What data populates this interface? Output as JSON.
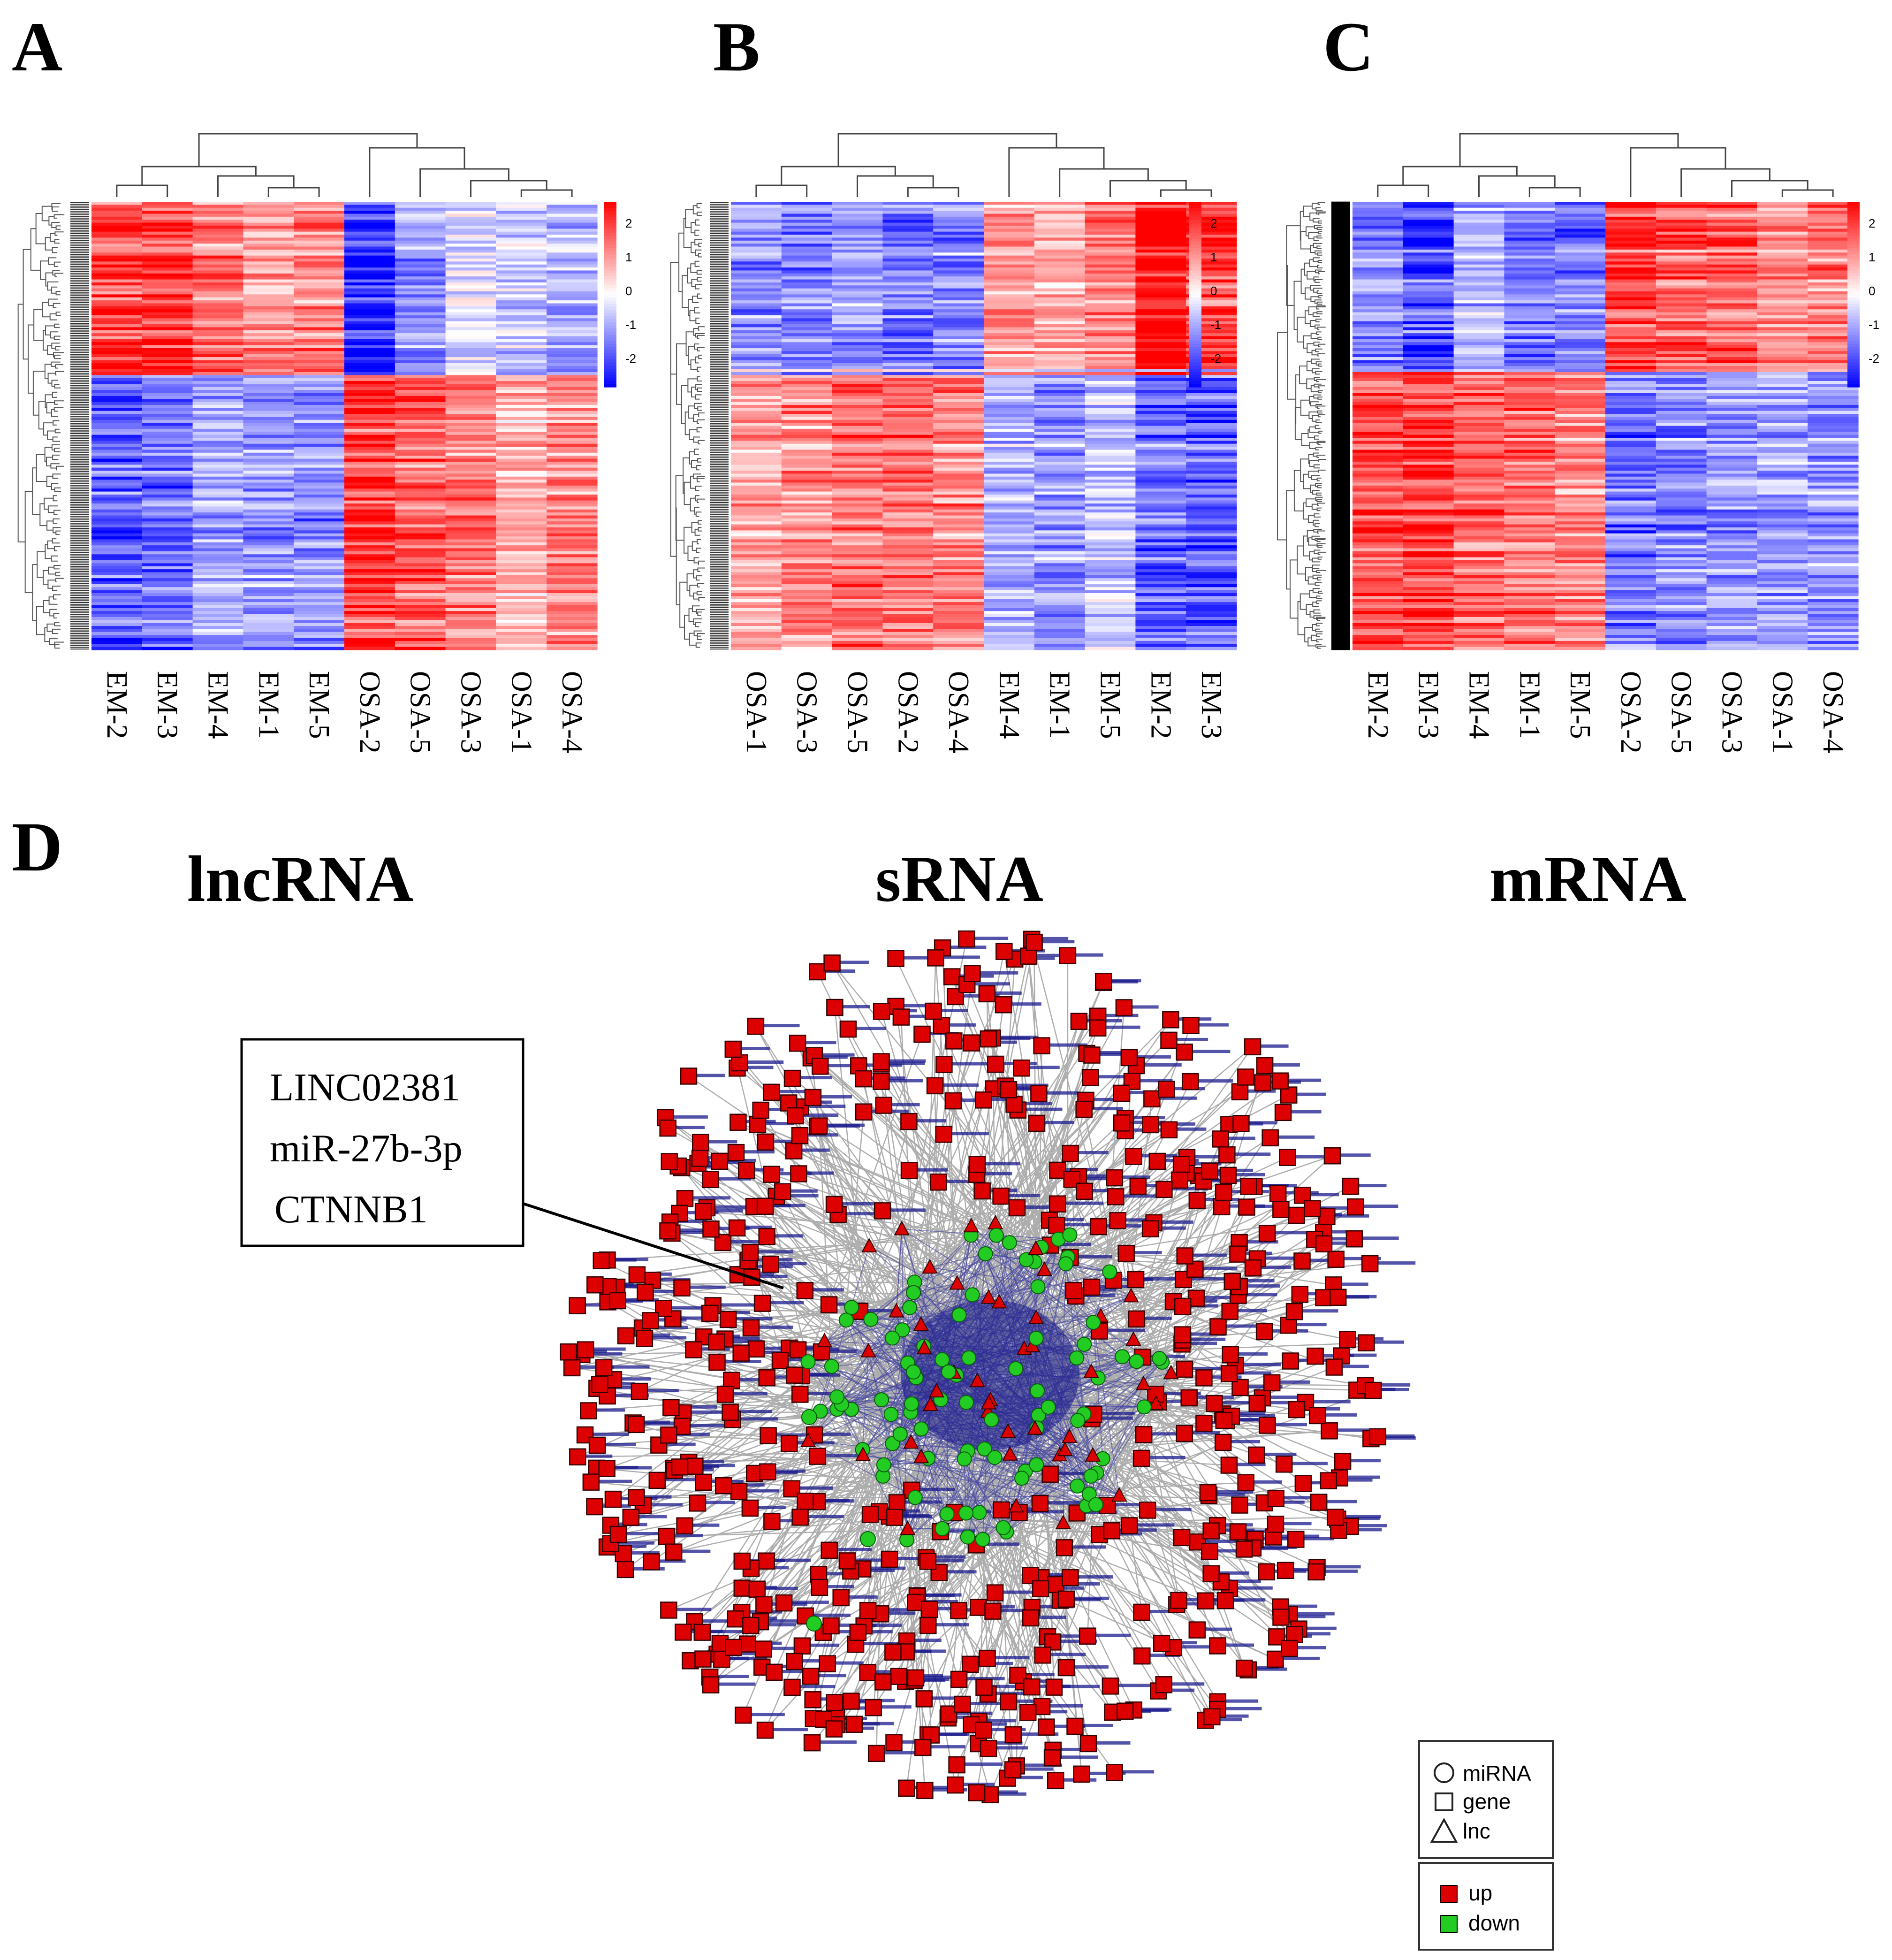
{
  "panels": {
    "A": "A",
    "B": "B",
    "C": "C",
    "D": "D"
  },
  "color_scale": {
    "low": "#0000ff",
    "mid": "#ffffff",
    "high": "#ff0000",
    "ticks": [
      "2",
      "1",
      "0",
      "-1",
      "-2"
    ]
  },
  "chart_data": [
    {
      "type": "heatmap",
      "panel": "A",
      "title": "lncRNA",
      "columns": [
        "EM-2",
        "EM-3",
        "EM-4",
        "EM-1",
        "EM-5",
        "OSA-2",
        "OSA-5",
        "OSA-3",
        "OSA-1",
        "OSA-4"
      ],
      "scale_range": [
        -2,
        2
      ],
      "block_pattern": {
        "upper_rows": [
          1.6,
          1.7,
          1.1,
          0.9,
          1.0,
          -1.9,
          -0.9,
          -0.3,
          -0.5,
          -0.6
        ],
        "lower_rows": [
          -1.3,
          -1.1,
          -0.7,
          -0.8,
          -0.9,
          1.6,
          1.2,
          1.0,
          0.6,
          0.9
        ]
      }
    },
    {
      "type": "heatmap",
      "panel": "B",
      "title": "sRNA",
      "columns": [
        "OSA-1",
        "OSA-3",
        "OSA-5",
        "OSA-2",
        "OSA-4",
        "EM-4",
        "EM-1",
        "EM-5",
        "EM-2",
        "EM-3"
      ],
      "scale_range": [
        -2,
        2
      ],
      "block_pattern": {
        "upper_rows": [
          -0.8,
          -0.9,
          -0.8,
          -1.0,
          -0.9,
          0.8,
          0.6,
          0.9,
          2.0,
          1.5
        ],
        "lower_rows": [
          0.7,
          0.9,
          1.1,
          1.1,
          1.0,
          -0.6,
          -0.8,
          -0.5,
          -1.2,
          -1.3
        ]
      }
    },
    {
      "type": "heatmap",
      "panel": "C",
      "title": "mRNA",
      "columns": [
        "EM-2",
        "EM-3",
        "EM-4",
        "EM-1",
        "EM-5",
        "OSA-2",
        "OSA-5",
        "OSA-3",
        "OSA-1",
        "OSA-4"
      ],
      "scale_range": [
        -2,
        2
      ],
      "block_pattern": {
        "upper_rows": [
          -0.9,
          -1.4,
          -0.6,
          -1.1,
          -1.0,
          1.5,
          1.2,
          1.2,
          0.8,
          1.0
        ],
        "lower_rows": [
          1.4,
          1.5,
          1.2,
          1.1,
          0.9,
          -1.1,
          -0.9,
          -0.8,
          -0.7,
          -0.8
        ]
      }
    }
  ],
  "network": {
    "callout": {
      "line1": "LINC02381",
      "line2": "miR-27b-3p",
      "line3": "CTNNB1"
    },
    "shape_legend": {
      "mirna": "miRNA",
      "gene": "gene",
      "lnc": "lnc"
    },
    "color_legend": {
      "up": "up",
      "down": "down"
    },
    "colors": {
      "up": "#dd0000",
      "down": "#22cc22",
      "edge": "#999999",
      "label": "#1a1a8c"
    }
  }
}
